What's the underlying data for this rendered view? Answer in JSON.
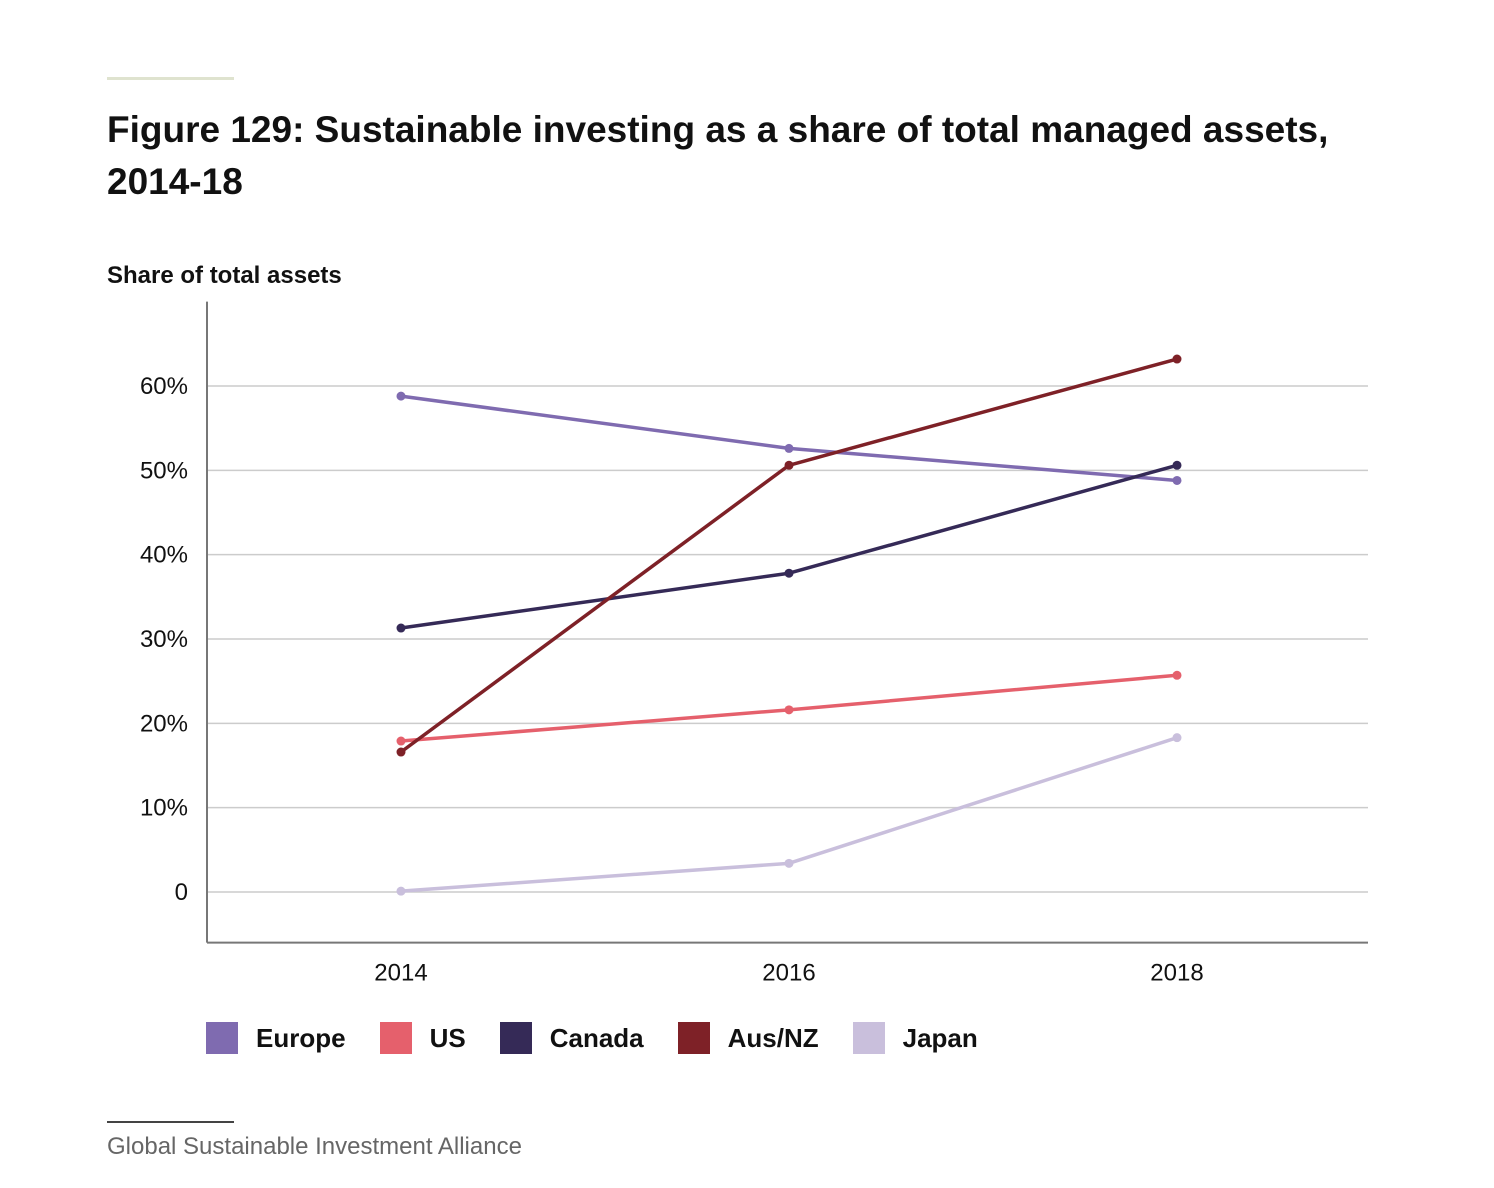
{
  "title": "Figure 129: Sustainable investing as a share of total managed assets, 2014-18",
  "source": "Global Sustainable Investment Alliance",
  "chart_data": {
    "type": "line",
    "title": "Figure 129: Sustainable investing as a share of total managed assets, 2014-18",
    "ylabel": "Share of total assets",
    "xlabel": "",
    "x": [
      "2014",
      "2016",
      "2018"
    ],
    "ylim": [
      -6,
      70
    ],
    "yticks": [
      0,
      10,
      20,
      30,
      40,
      50,
      60
    ],
    "ytick_labels": [
      "0",
      "10%",
      "20%",
      "30%",
      "40%",
      "50%",
      "60%"
    ],
    "grid": true,
    "legend_position": "bottom",
    "series": [
      {
        "name": "Europe",
        "color": "#7f6bb0",
        "values": [
          58.8,
          52.6,
          48.8
        ]
      },
      {
        "name": "US",
        "color": "#e5606c",
        "values": [
          17.9,
          21.6,
          25.7
        ]
      },
      {
        "name": "Canada",
        "color": "#352a57",
        "values": [
          31.3,
          37.8,
          50.6
        ]
      },
      {
        "name": "Aus/NZ",
        "color": "#7e2127",
        "values": [
          16.6,
          50.6,
          63.2
        ]
      },
      {
        "name": "Japan",
        "color": "#c9bfdc",
        "values": [
          0.1,
          3.4,
          18.3
        ]
      }
    ]
  }
}
